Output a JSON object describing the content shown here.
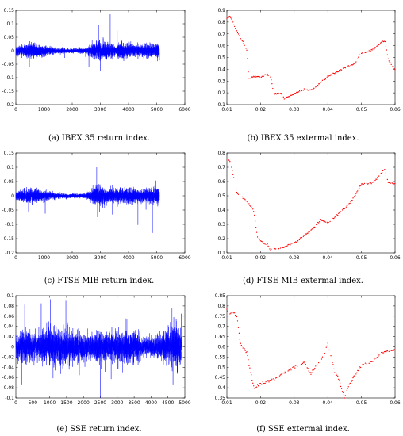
{
  "figure": {
    "captions": [
      "(a) IBEX 35 return index.",
      "(b) IBEX 35 extermal index.",
      "(c) FTSE MIB return index.",
      "(d) FTSE MIB extermal index.",
      "(e) SSE return index.",
      "(f) SSE extermal index."
    ]
  },
  "colors": {
    "return_series": "#0000ff",
    "extremal_series": "#ff0000",
    "axes": "#000000"
  },
  "chart_data": [
    {
      "id": "a",
      "type": "line",
      "title": "",
      "xlabel": "",
      "ylabel": "",
      "xlim": [
        0,
        6000
      ],
      "ylim": [
        -0.2,
        0.15
      ],
      "xticks": [
        "0",
        "1000",
        "2000",
        "3000",
        "4000",
        "5000",
        "6000"
      ],
      "yticks": [
        "-0.2",
        "-0.15",
        "-0.1",
        "-0.05",
        "0",
        "0.05",
        "0.1",
        "0.15"
      ],
      "series": [
        {
          "n": 5100,
          "base_sd": 0.012,
          "x": [
            0,
            500,
            1000,
            1500,
            2000,
            2500,
            2800,
            3000,
            3200,
            3500,
            3800,
            4200,
            4600,
            5000,
            5100
          ],
          "amp": [
            0.012,
            0.025,
            0.015,
            0.008,
            0.006,
            0.008,
            0.025,
            0.03,
            0.022,
            0.018,
            0.025,
            0.018,
            0.02,
            0.025,
            0.02
          ],
          "spikes": [
            {
              "x": 2950,
              "y": 0.095
            },
            {
              "x": 3350,
              "y": 0.135
            },
            {
              "x": 4950,
              "y": -0.13
            },
            {
              "x": 3000,
              "y": -0.075
            },
            {
              "x": 480,
              "y": -0.06
            },
            {
              "x": 3600,
              "y": 0.075
            }
          ]
        }
      ]
    },
    {
      "id": "b",
      "type": "scatter",
      "title": "",
      "xlabel": "",
      "ylabel": "",
      "xlim": [
        0.01,
        0.06
      ],
      "ylim": [
        0.1,
        0.9
      ],
      "xticks": [
        "0.01",
        "0.02",
        "0.03",
        "0.04",
        "0.05",
        "0.06"
      ],
      "yticks": [
        "0.1",
        "0.2",
        "0.3",
        "0.4",
        "0.5",
        "0.6",
        "0.7",
        "0.8",
        "0.9"
      ],
      "series": [
        {
          "x": [
            0.01,
            0.011,
            0.013,
            0.015,
            0.016,
            0.0165,
            0.018,
            0.02,
            0.022,
            0.023,
            0.024,
            0.026,
            0.027,
            0.03,
            0.033,
            0.034,
            0.036,
            0.04,
            0.045,
            0.048,
            0.05,
            0.052,
            0.054,
            0.056,
            0.057,
            0.058,
            0.06
          ],
          "y": [
            0.83,
            0.85,
            0.72,
            0.62,
            0.55,
            0.32,
            0.34,
            0.33,
            0.36,
            0.33,
            0.19,
            0.2,
            0.15,
            0.19,
            0.23,
            0.22,
            0.24,
            0.34,
            0.41,
            0.45,
            0.54,
            0.55,
            0.58,
            0.63,
            0.64,
            0.48,
            0.4
          ]
        }
      ]
    },
    {
      "id": "c",
      "type": "line",
      "title": "",
      "xlabel": "",
      "ylabel": "",
      "xlim": [
        0,
        6000
      ],
      "ylim": [
        -0.2,
        0.15
      ],
      "xticks": [
        "0",
        "1000",
        "2000",
        "3000",
        "4000",
        "5000",
        "6000"
      ],
      "yticks": [
        "-0.2",
        "-0.15",
        "-0.1",
        "-0.05",
        "0",
        "0.05",
        "0.1",
        "0.15"
      ],
      "series": [
        {
          "n": 5100,
          "base_sd": 0.012,
          "x": [
            0,
            500,
            1000,
            1500,
            2000,
            2500,
            2800,
            3000,
            3300,
            3600,
            4000,
            4500,
            5000,
            5100
          ],
          "amp": [
            0.012,
            0.022,
            0.015,
            0.008,
            0.006,
            0.008,
            0.022,
            0.03,
            0.018,
            0.02,
            0.022,
            0.02,
            0.025,
            0.02
          ],
          "spikes": [
            {
              "x": 2870,
              "y": 0.1
            },
            {
              "x": 3050,
              "y": 0.08
            },
            {
              "x": 4850,
              "y": -0.13
            },
            {
              "x": 2900,
              "y": -0.075
            },
            {
              "x": 450,
              "y": -0.055
            },
            {
              "x": 3200,
              "y": 0.06
            }
          ]
        }
      ]
    },
    {
      "id": "d",
      "type": "scatter",
      "title": "",
      "xlabel": "",
      "ylabel": "",
      "xlim": [
        0.01,
        0.06
      ],
      "ylim": [
        0.1,
        0.8
      ],
      "xticks": [
        "0.01",
        "0.02",
        "0.03",
        "0.04",
        "0.05",
        "0.06"
      ],
      "yticks": [
        "0.1",
        "0.2",
        "0.3",
        "0.4",
        "0.5",
        "0.6",
        "0.7",
        "0.8"
      ],
      "series": [
        {
          "x": [
            0.01,
            0.011,
            0.013,
            0.015,
            0.017,
            0.018,
            0.019,
            0.02,
            0.022,
            0.023,
            0.026,
            0.03,
            0.033,
            0.035,
            0.038,
            0.04,
            0.043,
            0.047,
            0.05,
            0.053,
            0.055,
            0.057,
            0.058,
            0.06
          ],
          "y": [
            0.76,
            0.74,
            0.52,
            0.48,
            0.43,
            0.39,
            0.22,
            0.18,
            0.16,
            0.12,
            0.13,
            0.17,
            0.22,
            0.26,
            0.33,
            0.31,
            0.37,
            0.46,
            0.58,
            0.59,
            0.63,
            0.69,
            0.59,
            0.59
          ]
        }
      ]
    },
    {
      "id": "e",
      "type": "line",
      "title": "",
      "xlabel": "",
      "ylabel": "",
      "xlim": [
        0,
        5000
      ],
      "ylim": [
        -0.1,
        0.1
      ],
      "xticks": [
        "0",
        "500",
        "1000",
        "1500",
        "2000",
        "2500",
        "3000",
        "3500",
        "4000",
        "4500",
        "5000"
      ],
      "yticks": [
        "-0.1",
        "-0.08",
        "-0.06",
        "-0.04",
        "-0.02",
        "0",
        "0.02",
        "0.04",
        "0.06",
        "0.08",
        "0.1"
      ],
      "series": [
        {
          "n": 4900,
          "base_sd": 0.014,
          "x": [
            0,
            250,
            500,
            750,
            1000,
            1250,
            1500,
            1750,
            2000,
            2250,
            2500,
            2750,
            3000,
            3250,
            3500,
            3750,
            4000,
            4250,
            4500,
            4750,
            4900
          ],
          "amp": [
            0.022,
            0.03,
            0.018,
            0.025,
            0.03,
            0.028,
            0.03,
            0.025,
            0.02,
            0.022,
            0.025,
            0.022,
            0.024,
            0.03,
            0.025,
            0.018,
            0.015,
            0.02,
            0.03,
            0.035,
            0.03
          ],
          "spikes": [
            {
              "x": 1020,
              "y": 0.093
            },
            {
              "x": 1480,
              "y": 0.09
            },
            {
              "x": 750,
              "y": 0.085
            },
            {
              "x": 3350,
              "y": 0.085
            },
            {
              "x": 4620,
              "y": 0.075
            },
            {
              "x": 180,
              "y": -0.075
            },
            {
              "x": 2820,
              "y": -0.063
            },
            {
              "x": 4650,
              "y": -0.075
            },
            {
              "x": 1870,
              "y": -0.06
            }
          ]
        }
      ]
    },
    {
      "id": "f",
      "type": "scatter",
      "title": "",
      "xlabel": "",
      "ylabel": "",
      "xlim": [
        0.01,
        0.06
      ],
      "ylim": [
        0.35,
        0.85
      ],
      "xticks": [
        "0.01",
        "0.02",
        "0.03",
        "0.04",
        "0.05",
        "0.06"
      ],
      "yticks": [
        "0.35",
        "0.4",
        "0.45",
        "0.5",
        "0.55",
        "0.6",
        "0.65",
        "0.7",
        "0.75",
        "0.8",
        "0.85"
      ],
      "series": [
        {
          "x": [
            0.01,
            0.011,
            0.012,
            0.013,
            0.014,
            0.015,
            0.016,
            0.0165,
            0.018,
            0.02,
            0.022,
            0.025,
            0.028,
            0.03,
            0.033,
            0.035,
            0.037,
            0.039,
            0.04,
            0.041,
            0.042,
            0.043,
            0.045,
            0.046,
            0.048,
            0.05,
            0.052,
            0.054,
            0.056,
            0.058,
            0.06
          ],
          "y": [
            0.78,
            0.76,
            0.77,
            0.75,
            0.62,
            0.59,
            0.57,
            0.52,
            0.4,
            0.42,
            0.43,
            0.45,
            0.48,
            0.5,
            0.52,
            0.47,
            0.52,
            0.56,
            0.62,
            0.55,
            0.48,
            0.45,
            0.35,
            0.4,
            0.46,
            0.51,
            0.52,
            0.54,
            0.57,
            0.58,
            0.59
          ]
        }
      ]
    }
  ]
}
